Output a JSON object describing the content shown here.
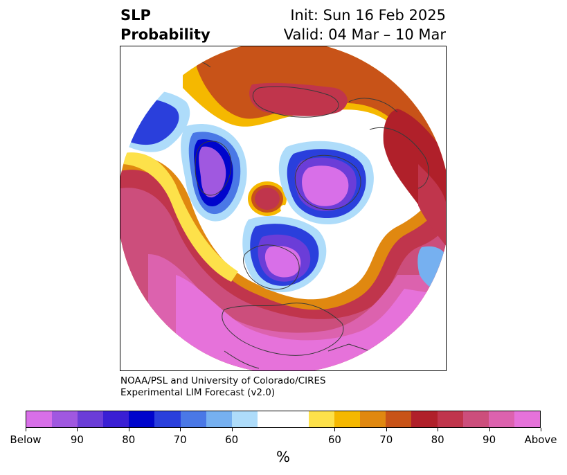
{
  "title": {
    "left_line1": "SLP",
    "left_line2": "Probability",
    "right_line1": "Init: Sun 16 Feb 2025",
    "right_line2": "Valid: 04 Mar – 10 Mar"
  },
  "credit": {
    "line1": "NOAA/PSL and University of Colorado/CIRES",
    "line2": "Experimental LIM Forecast (v2.0)"
  },
  "colorbar": {
    "unit": "%",
    "below_colors": [
      "#d86fe8",
      "#a058e0",
      "#6b3dd8",
      "#3a1fd4",
      "#0005cc",
      "#2a3fdc",
      "#4a78e6",
      "#76b0f0",
      "#aedcfa"
    ],
    "neutral_color": "#ffffff",
    "above_colors": [
      "#fde14a",
      "#f5b800",
      "#e08810",
      "#c85318",
      "#b0202a",
      "#c0354c",
      "#cc4e7c",
      "#dc62ae",
      "#e672da"
    ],
    "tick_labels": [
      "Below",
      "90",
      "80",
      "70",
      "60",
      "60",
      "70",
      "80",
      "90",
      "Above"
    ]
  },
  "map": {
    "projection": "north-polar-stereographic",
    "variable": "sea-level-pressure-tercile-probability"
  }
}
